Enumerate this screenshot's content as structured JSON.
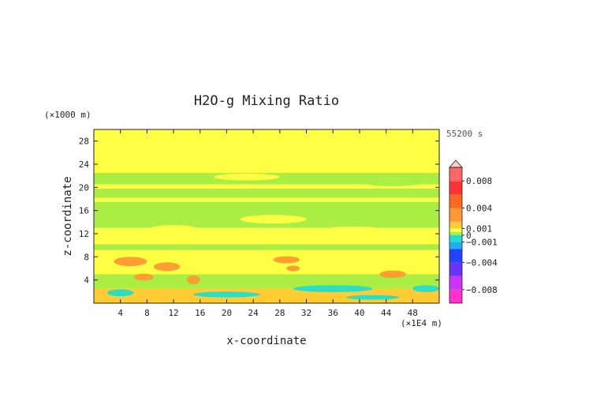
{
  "chart_data": {
    "type": "heatmap",
    "title": "H2O-g Mixing Ratio",
    "xlabel": "x-coordinate",
    "ylabel": "z-coordinate",
    "x_unit": "(×1E4 m)",
    "y_unit": "(×1000 m)",
    "time_label": "55200 s",
    "xlim": [
      0,
      52
    ],
    "ylim": [
      0,
      30
    ],
    "x_ticks": [
      4,
      8,
      12,
      16,
      20,
      24,
      28,
      32,
      36,
      40,
      44,
      48
    ],
    "y_ticks": [
      4,
      8,
      12,
      16,
      20,
      24,
      28
    ],
    "colorbar": {
      "min": -0.01,
      "max": 0.01,
      "extend": "max",
      "tick_values": [
        0.008,
        0.004,
        0.001,
        0,
        -0.001,
        -0.004,
        -0.008
      ],
      "tick_labels": [
        "0.008",
        "0.004",
        "0.001",
        "0",
        "−0.001",
        "−0.004",
        "−0.008"
      ],
      "stops": [
        {
          "v": -0.01,
          "c": "#ff33cc"
        },
        {
          "v": -0.008,
          "c": "#cc33ff"
        },
        {
          "v": -0.006,
          "c": "#6633ff"
        },
        {
          "v": -0.004,
          "c": "#2244ff"
        },
        {
          "v": -0.002,
          "c": "#22aaff"
        },
        {
          "v": -0.001,
          "c": "#22ddcc"
        },
        {
          "v": 0,
          "c": "#aaee44"
        },
        {
          "v": 0.0005,
          "c": "#ffff44"
        },
        {
          "v": 0.001,
          "c": "#ffcc33"
        },
        {
          "v": 0.002,
          "c": "#ff9933"
        },
        {
          "v": 0.004,
          "c": "#ff6622"
        },
        {
          "v": 0.006,
          "c": "#ff3333"
        },
        {
          "v": 0.008,
          "c": "#ff6666"
        },
        {
          "v": 0.01,
          "c": "#ffaaaa"
        }
      ]
    },
    "field_bands": [
      {
        "z": [
          22.5,
          30
        ],
        "color": "#ffff44"
      },
      {
        "z": [
          20.5,
          22.5
        ],
        "color": "#aaee44"
      },
      {
        "z": [
          19.8,
          20.5
        ],
        "color": "#ffff44"
      },
      {
        "z": [
          18.2,
          19.8
        ],
        "color": "#aaee44"
      },
      {
        "z": [
          17.5,
          18.2
        ],
        "color": "#ffff44"
      },
      {
        "z": [
          13.0,
          17.5
        ],
        "color": "#aaee44"
      },
      {
        "z": [
          10.2,
          13.0
        ],
        "color": "#ffff44"
      },
      {
        "z": [
          9.2,
          10.2
        ],
        "color": "#aaee44"
      },
      {
        "z": [
          7.2,
          9.2
        ],
        "color": "#ffff44"
      },
      {
        "z": [
          5.0,
          7.2
        ],
        "color": "#ffff44"
      },
      {
        "z": [
          2.5,
          5.0
        ],
        "color": "#aaee44"
      },
      {
        "z": [
          0,
          2.5
        ],
        "color": "#ffcc33"
      }
    ],
    "features": [
      {
        "x": 3,
        "z": 7.2,
        "w": 5,
        "h": 1.6,
        "color": "#ff9933"
      },
      {
        "x": 9,
        "z": 6.3,
        "w": 4,
        "h": 1.5,
        "color": "#ff9933"
      },
      {
        "x": 27,
        "z": 7.5,
        "w": 4,
        "h": 1.2,
        "color": "#ff9933"
      },
      {
        "x": 29,
        "z": 6.0,
        "w": 2,
        "h": 1.0,
        "color": "#ff9933"
      },
      {
        "x": 43,
        "z": 5.0,
        "w": 4,
        "h": 1.3,
        "color": "#ff9933"
      },
      {
        "x": 14,
        "z": 4.0,
        "w": 2,
        "h": 1.5,
        "color": "#ff9933"
      },
      {
        "x": 6,
        "z": 4.5,
        "w": 3,
        "h": 1.2,
        "color": "#ff9933"
      },
      {
        "x": 2,
        "z": 1.8,
        "w": 4,
        "h": 1.2,
        "color": "#22ddcc"
      },
      {
        "x": 15,
        "z": 1.5,
        "w": 10,
        "h": 1.0,
        "color": "#22ddcc"
      },
      {
        "x": 30,
        "z": 2.5,
        "w": 12,
        "h": 1.2,
        "color": "#22ddcc"
      },
      {
        "x": 38,
        "z": 1.0,
        "w": 8,
        "h": 0.8,
        "color": "#22ddcc"
      },
      {
        "x": 48,
        "z": 2.5,
        "w": 4,
        "h": 1.2,
        "color": "#22ddcc"
      },
      {
        "x": 22,
        "z": 14.5,
        "w": 10,
        "h": 1.5,
        "color": "#ffff44"
      },
      {
        "x": 33,
        "z": 12.0,
        "w": 12,
        "h": 2.5,
        "color": "#ffff44"
      },
      {
        "x": 8,
        "z": 12.5,
        "w": 8,
        "h": 2.0,
        "color": "#ffff44"
      },
      {
        "x": 18,
        "z": 21.8,
        "w": 10,
        "h": 1.2,
        "color": "#ffff44"
      },
      {
        "x": 40,
        "z": 21.0,
        "w": 10,
        "h": 1.6,
        "color": "#aaee44"
      }
    ]
  }
}
